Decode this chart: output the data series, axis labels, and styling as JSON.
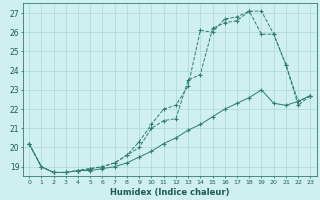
{
  "xlabel": "Humidex (Indice chaleur)",
  "bg_color": "#cff0ee",
  "line_color": "#2e7d6e",
  "grid_color": "#aad8d4",
  "xlim": [
    -0.5,
    23.5
  ],
  "ylim": [
    18.5,
    27.5
  ],
  "yticks": [
    19,
    20,
    21,
    22,
    23,
    24,
    25,
    26,
    27
  ],
  "xticks": [
    0,
    1,
    2,
    3,
    4,
    5,
    6,
    7,
    8,
    9,
    10,
    11,
    12,
    13,
    14,
    15,
    16,
    17,
    18,
    19,
    20,
    21,
    22,
    23
  ],
  "line1_x": [
    0,
    1,
    2,
    3,
    4,
    5,
    6,
    7,
    8,
    9,
    10,
    11,
    12,
    13,
    14,
    15,
    16,
    17,
    18,
    19,
    20,
    21,
    22,
    23
  ],
  "line1_y": [
    20.2,
    19.0,
    18.7,
    18.7,
    18.8,
    18.8,
    18.9,
    19.0,
    19.2,
    19.5,
    19.8,
    20.2,
    20.5,
    20.9,
    21.2,
    21.6,
    22.0,
    22.3,
    22.6,
    23.0,
    22.3,
    22.2,
    22.4,
    22.7
  ],
  "line2_x": [
    0,
    1,
    2,
    3,
    4,
    5,
    6,
    7,
    8,
    9,
    10,
    11,
    12,
    13,
    14,
    15,
    16,
    17,
    18,
    19,
    20,
    21,
    22,
    23
  ],
  "line2_y": [
    20.2,
    19.0,
    18.7,
    18.7,
    18.8,
    18.9,
    19.0,
    19.2,
    19.6,
    20.3,
    21.2,
    22.0,
    22.2,
    23.2,
    26.1,
    26.0,
    26.7,
    26.8,
    27.1,
    27.1,
    25.9,
    24.3,
    22.4,
    22.7
  ],
  "line3_x": [
    0,
    1,
    2,
    3,
    4,
    5,
    6,
    7,
    8,
    9,
    10,
    11,
    12,
    13,
    14,
    15,
    16,
    17,
    18,
    19,
    20,
    21,
    22,
    23
  ],
  "line3_y": [
    20.2,
    19.0,
    18.7,
    18.7,
    18.8,
    18.9,
    19.0,
    19.2,
    19.6,
    20.0,
    21.0,
    21.4,
    21.5,
    23.5,
    23.8,
    26.2,
    26.5,
    26.6,
    27.1,
    25.9,
    25.9,
    24.3,
    22.2,
    22.7
  ]
}
